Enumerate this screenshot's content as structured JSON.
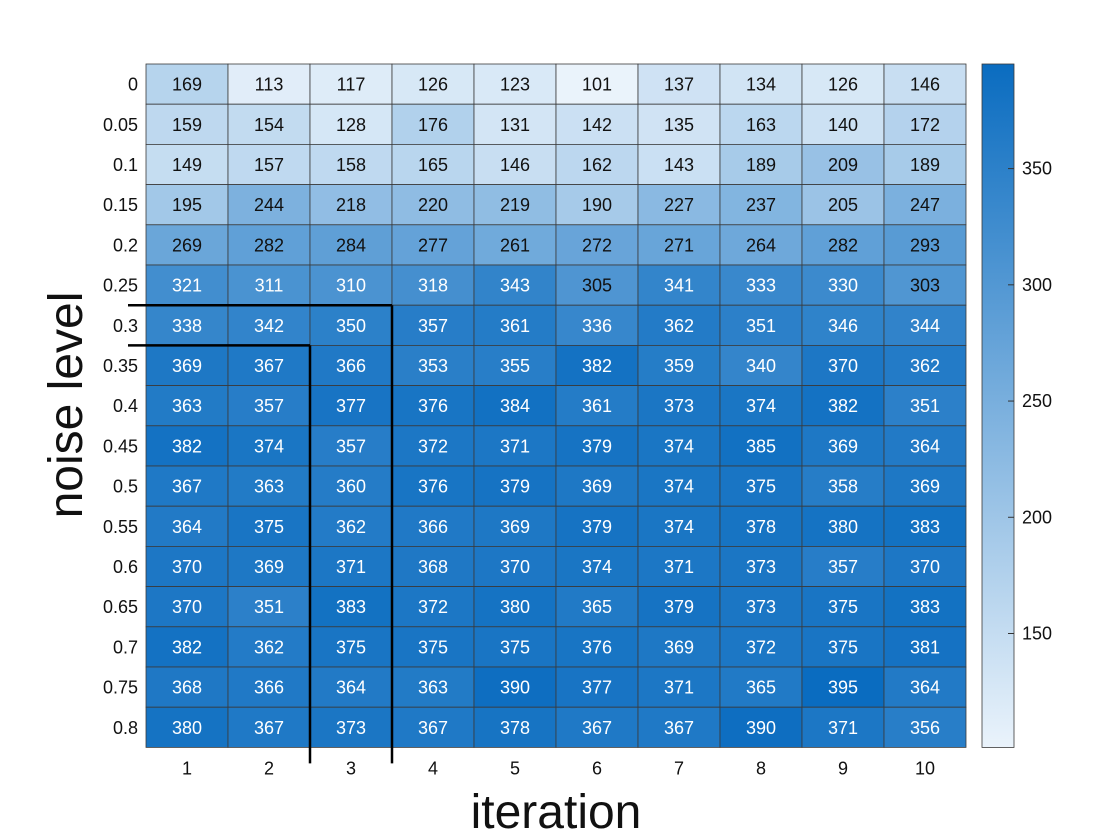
{
  "chart_data": {
    "type": "heatmap",
    "title": "",
    "xlabel": "iteration",
    "ylabel": "noise level",
    "x_categories": [
      "1",
      "2",
      "3",
      "4",
      "5",
      "6",
      "7",
      "8",
      "9",
      "10"
    ],
    "y_categories": [
      "0",
      "0.05",
      "0.1",
      "0.15",
      "0.2",
      "0.25",
      "0.3",
      "0.35",
      "0.4",
      "0.45",
      "0.5",
      "0.55",
      "0.6",
      "0.65",
      "0.7",
      "0.75",
      "0.8"
    ],
    "values": [
      [
        169,
        113,
        117,
        126,
        123,
        101,
        137,
        134,
        126,
        146
      ],
      [
        159,
        154,
        128,
        176,
        131,
        142,
        135,
        163,
        140,
        172
      ],
      [
        149,
        157,
        158,
        165,
        146,
        162,
        143,
        189,
        209,
        189
      ],
      [
        195,
        244,
        218,
        220,
        219,
        190,
        227,
        237,
        205,
        247
      ],
      [
        269,
        282,
        284,
        277,
        261,
        272,
        271,
        264,
        282,
        293
      ],
      [
        321,
        311,
        310,
        318,
        343,
        305,
        341,
        333,
        330,
        303
      ],
      [
        338,
        342,
        350,
        357,
        361,
        336,
        362,
        351,
        346,
        344
      ],
      [
        369,
        367,
        366,
        353,
        355,
        382,
        359,
        340,
        370,
        362
      ],
      [
        363,
        357,
        377,
        376,
        384,
        361,
        373,
        374,
        382,
        351
      ],
      [
        382,
        374,
        357,
        372,
        371,
        379,
        374,
        385,
        369,
        364
      ],
      [
        367,
        363,
        360,
        376,
        379,
        369,
        374,
        375,
        358,
        369
      ],
      [
        364,
        375,
        362,
        366,
        369,
        379,
        374,
        378,
        380,
        383
      ],
      [
        370,
        369,
        371,
        368,
        370,
        374,
        371,
        373,
        357,
        370
      ],
      [
        370,
        351,
        383,
        372,
        380,
        365,
        379,
        373,
        375,
        383
      ],
      [
        382,
        362,
        375,
        375,
        375,
        376,
        369,
        372,
        375,
        381
      ],
      [
        368,
        366,
        364,
        363,
        390,
        377,
        371,
        365,
        395,
        364
      ],
      [
        380,
        367,
        373,
        367,
        378,
        367,
        367,
        390,
        371,
        356
      ]
    ],
    "colorbar": {
      "ticks": [
        "150",
        "200",
        "250",
        "300",
        "350"
      ],
      "tick_values": [
        150,
        200,
        250,
        300,
        350
      ],
      "min": 101,
      "max": 395
    },
    "colormap": {
      "low": "#eaf3fb",
      "high": "#0a6cc0"
    },
    "highlight": {
      "row_label": "0.3",
      "column_label": "3"
    }
  }
}
